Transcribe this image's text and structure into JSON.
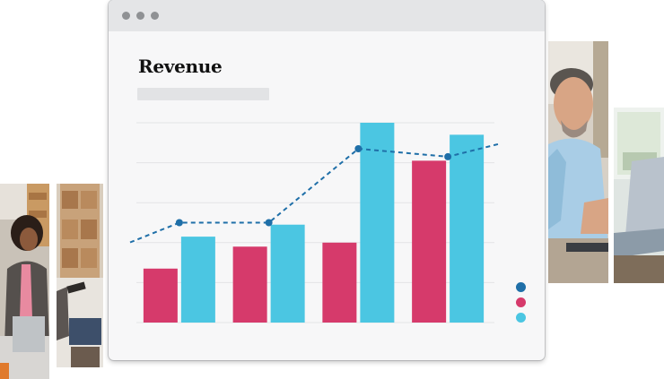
{
  "window": {
    "controls": [
      "close",
      "minimize",
      "maximize"
    ]
  },
  "chart": {
    "title": "Revenue"
  },
  "chart_data": {
    "type": "bar",
    "title": "Revenue",
    "categories": [
      "",
      "",
      "",
      ""
    ],
    "ylim": [
      0,
      100
    ],
    "grid": true,
    "series": [
      {
        "type": "bar",
        "color": "#d63a6b",
        "values": [
          27,
          38,
          40,
          81
        ]
      },
      {
        "type": "bar",
        "color": "#4bc6e2",
        "values": [
          43,
          49,
          100,
          94
        ]
      },
      {
        "type": "line",
        "color": "#1f6fa8",
        "dashed": true,
        "values": [
          50,
          50,
          87,
          83
        ]
      }
    ],
    "legend_colors": [
      "#1f6fa8",
      "#d63a6b",
      "#4bc6e2"
    ],
    "legend_placement": "bottom-right"
  },
  "photos": [
    {
      "subject": "woman-with-phone-in-warehouse"
    },
    {
      "subject": "man-smiling-at-laptop"
    }
  ]
}
